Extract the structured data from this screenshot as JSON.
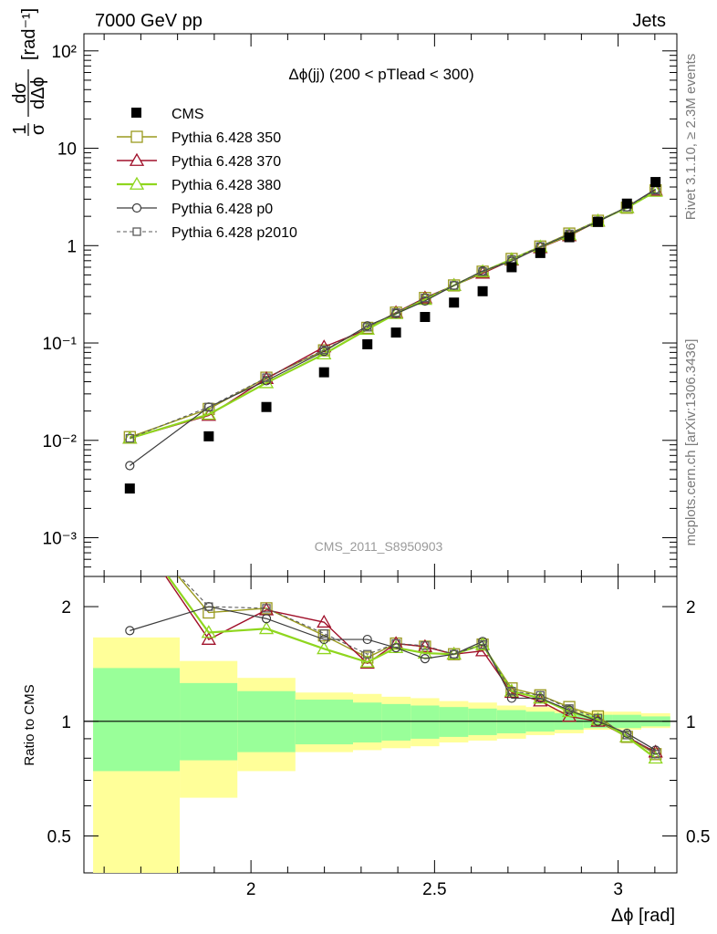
{
  "header": {
    "left": "7000 GeV pp",
    "right": "Jets"
  },
  "side_labels": {
    "rivet": "Rivet 3.1.10, ≥ 2.3M events",
    "mcplots": "mcplots.cern.ch [arXiv:1306.3436]"
  },
  "watermark": "CMS_2011_S8950903",
  "upper_ylabel": {
    "frac_num": "1",
    "frac_den": "σ",
    "d_num": "dσ",
    "d_den": "dΔϕ",
    "unit": "[rad⁻¹]"
  },
  "lower_ylabel": "Ratio to CMS",
  "xlabel": "Δϕ [rad]",
  "colors": {
    "cms": "#000000",
    "p350": "#9a9a1e",
    "p370": "#a0102a",
    "p380": "#8fd61e",
    "p0": "#3c3c3c",
    "p2010": "#5a5a5a",
    "band_inner": "#99ff99",
    "band_outer": "#ffff99"
  },
  "chart_data": [
    {
      "type": "scatter",
      "title": "Δϕ(jj) (200 < pTlead <  300)",
      "yscale": "log",
      "xlim": [
        1.545,
        3.16
      ],
      "ylim": [
        0.0004,
        150
      ],
      "yticks": [
        0.001,
        0.01,
        0.1,
        1,
        10,
        100
      ],
      "ytick_labels": [
        "10⁻³",
        "10⁻²",
        "10⁻¹",
        "1",
        "10",
        "10²"
      ],
      "legend_position": "top-left",
      "x": [
        1.67,
        1.885,
        2.042,
        2.199,
        2.317,
        2.395,
        2.474,
        2.553,
        2.631,
        2.71,
        2.788,
        2.867,
        2.945,
        3.024,
        3.102
      ],
      "series": [
        {
          "name": "CMS",
          "marker": "filled-square",
          "values": [
            0.0032,
            0.011,
            0.022,
            0.05,
            0.097,
            0.128,
            0.185,
            0.26,
            0.34,
            0.6,
            0.84,
            1.22,
            1.75,
            2.7,
            4.5
          ]
        },
        {
          "name": "Pythia 6.428 350",
          "marker": "open-square",
          "values": [
            0.0108,
            0.021,
            0.044,
            0.084,
            0.143,
            0.205,
            0.29,
            0.39,
            0.54,
            0.73,
            0.98,
            1.33,
            1.8,
            2.45,
            3.7
          ]
        },
        {
          "name": "Pythia 6.428 370",
          "marker": "open-triangle",
          "values": [
            0.0105,
            0.018,
            0.043,
            0.091,
            0.138,
            0.205,
            0.29,
            0.39,
            0.52,
            0.71,
            0.95,
            1.26,
            1.78,
            2.45,
            3.7
          ]
        },
        {
          "name": "Pythia 6.428 380",
          "marker": "open-triangle",
          "values": [
            0.0105,
            0.0185,
            0.039,
            0.077,
            0.138,
            0.2,
            0.28,
            0.39,
            0.54,
            0.72,
            0.97,
            1.29,
            1.79,
            2.45,
            3.6
          ]
        },
        {
          "name": "Pythia 6.428 p0",
          "marker": "open-circle",
          "values": [
            0.0055,
            0.022,
            0.041,
            0.082,
            0.15,
            0.2,
            0.27,
            0.39,
            0.55,
            0.69,
            0.97,
            1.3,
            1.76,
            2.5,
            3.8
          ]
        },
        {
          "name": "Pythia 6.428 p2010",
          "marker": "open-square-dashed",
          "values": [
            0.0105,
            0.022,
            0.044,
            0.085,
            0.145,
            0.205,
            0.29,
            0.39,
            0.54,
            0.72,
            0.98,
            1.32,
            1.8,
            2.48,
            3.7
          ]
        }
      ]
    },
    {
      "type": "line",
      "ylabel": "Ratio to CMS",
      "xlabel": "Δϕ [rad]",
      "yscale": "log",
      "xlim": [
        1.545,
        3.16
      ],
      "ylim": [
        0.4,
        2.4
      ],
      "yticks": [
        0.5,
        1,
        2
      ],
      "ytick_labels": [
        "0.5",
        "1",
        "2"
      ],
      "xticks": [
        2,
        2.5,
        3
      ],
      "xtick_labels": [
        "2",
        "2.5",
        "3"
      ],
      "x": [
        1.67,
        1.885,
        2.042,
        2.199,
        2.317,
        2.395,
        2.474,
        2.553,
        2.631,
        2.71,
        2.788,
        2.867,
        2.945,
        3.024,
        3.102
      ],
      "series": [
        {
          "name": "Pythia 6.428 350",
          "values": [
            3.4,
            1.93,
            1.98,
            1.68,
            1.47,
            1.6,
            1.57,
            1.5,
            1.59,
            1.22,
            1.17,
            1.09,
            1.03,
            0.91,
            0.82
          ]
        },
        {
          "name": "Pythia 6.428 370",
          "values": [
            3.3,
            1.64,
            1.96,
            1.82,
            1.42,
            1.6,
            1.57,
            1.5,
            1.53,
            1.19,
            1.13,
            1.03,
            1.0,
            0.91,
            0.83
          ]
        },
        {
          "name": "Pythia 6.428 380",
          "values": [
            3.3,
            1.71,
            1.75,
            1.55,
            1.43,
            1.56,
            1.51,
            1.5,
            1.59,
            1.2,
            1.15,
            1.06,
            1.01,
            0.91,
            0.8
          ]
        },
        {
          "name": "Pythia 6.428 p0",
          "values": [
            1.73,
            2.0,
            1.86,
            1.64,
            1.64,
            1.56,
            1.46,
            1.5,
            1.62,
            1.15,
            1.15,
            1.07,
            1.0,
            0.93,
            0.84
          ]
        },
        {
          "name": "Pythia 6.428 p2010",
          "values": [
            3.3,
            2.0,
            1.98,
            1.7,
            1.5,
            1.6,
            1.58,
            1.5,
            1.59,
            1.2,
            1.17,
            1.08,
            1.02,
            0.92,
            0.82
          ]
        }
      ],
      "bands": {
        "edges": [
          1.57,
          1.806,
          1.963,
          2.121,
          2.278,
          2.356,
          2.435,
          2.513,
          2.592,
          2.67,
          2.749,
          2.827,
          2.906,
          2.985,
          3.063,
          3.142
        ],
        "inner_lo": [
          0.74,
          0.79,
          0.83,
          0.87,
          0.88,
          0.89,
          0.9,
          0.91,
          0.92,
          0.93,
          0.94,
          0.95,
          0.96,
          0.96,
          0.97
        ],
        "inner_hi": [
          1.38,
          1.26,
          1.2,
          1.14,
          1.12,
          1.11,
          1.1,
          1.09,
          1.08,
          1.07,
          1.06,
          1.05,
          1.04,
          1.04,
          1.03
        ],
        "outer_lo": [
          0.3,
          0.63,
          0.74,
          0.83,
          0.84,
          0.85,
          0.86,
          0.88,
          0.89,
          0.9,
          0.92,
          0.93,
          0.95,
          0.95,
          0.96
        ],
        "outer_hi": [
          1.66,
          1.44,
          1.3,
          1.19,
          1.18,
          1.16,
          1.15,
          1.13,
          1.12,
          1.1,
          1.09,
          1.07,
          1.06,
          1.06,
          1.05
        ]
      }
    }
  ]
}
